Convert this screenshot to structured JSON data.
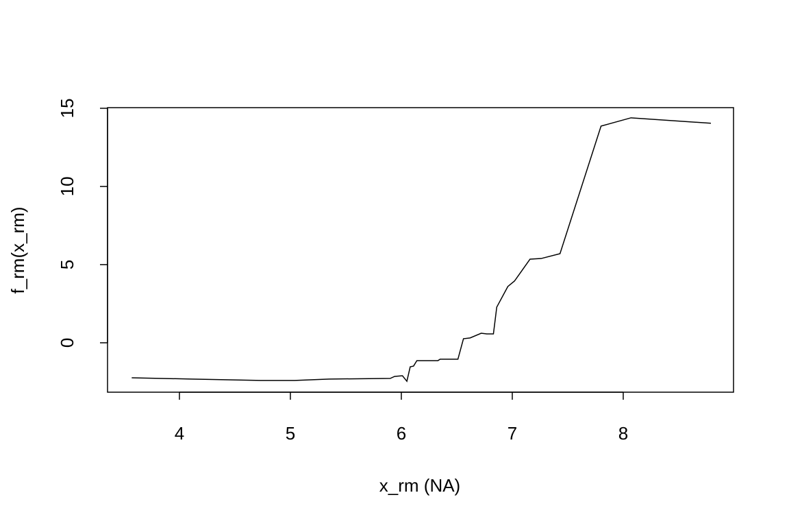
{
  "chart_data": {
    "type": "line",
    "x_label": "x_rm (NA)",
    "y_label": "f_rm(x_rm)",
    "color": "#000000",
    "x": [
      3.57,
      4.11,
      4.73,
      5.04,
      5.35,
      5.9,
      5.94,
      6.01,
      6.05,
      6.08,
      6.11,
      6.14,
      6.33,
      6.35,
      6.51,
      6.56,
      6.62,
      6.72,
      6.77,
      6.83,
      6.86,
      6.96,
      7.02,
      7.16,
      7.26,
      7.43,
      7.8,
      8.07,
      8.79
    ],
    "values": [
      -2.24,
      -2.32,
      -2.41,
      -2.41,
      -2.32,
      -2.28,
      -2.15,
      -2.11,
      -2.46,
      -1.54,
      -1.49,
      -1.14,
      -1.14,
      -1.05,
      -1.05,
      0.26,
      0.31,
      0.61,
      0.57,
      0.57,
      2.28,
      3.6,
      3.95,
      5.35,
      5.39,
      5.7,
      13.86,
      14.39,
      14.04
    ],
    "xlim": [
      3.352,
      8.994
    ],
    "xticks": [
      4,
      5,
      6,
      7,
      8
    ],
    "ylim": [
      -3.16,
      15.04
    ],
    "yticks": [
      0,
      5,
      10,
      15
    ]
  }
}
